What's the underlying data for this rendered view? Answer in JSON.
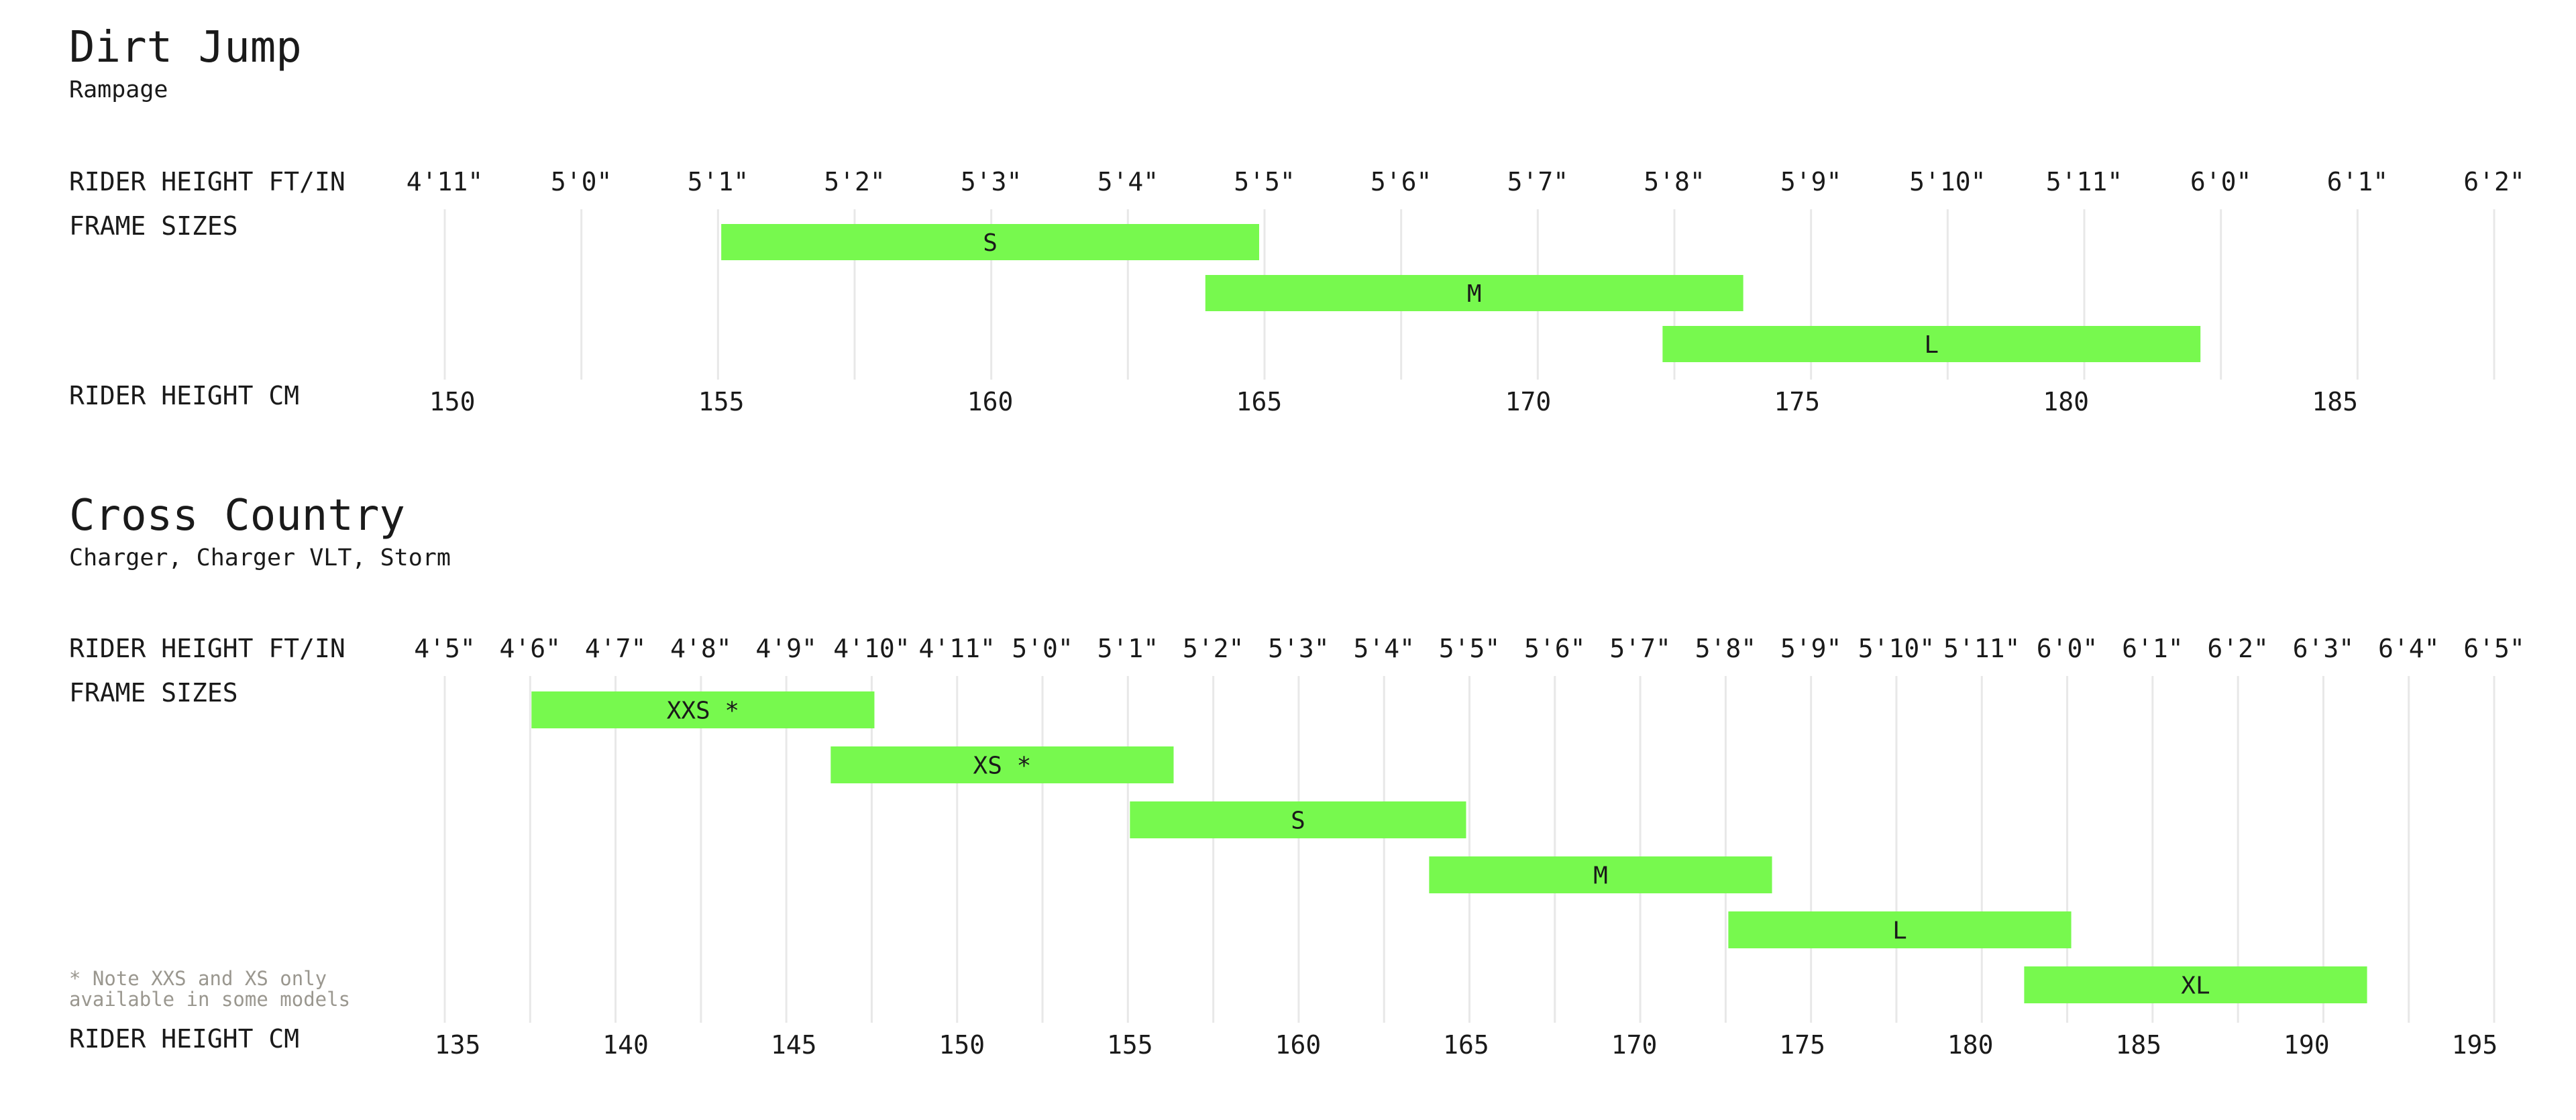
{
  "colors": {
    "bar": "#77f94e",
    "text": "#1a1a1a",
    "gridline": "#e8e8e8",
    "note": "#9a978f"
  },
  "chart_data": [
    {
      "type": "bar",
      "orientation": "horizontal-range",
      "title": "Dirt Jump",
      "subtitle": "Rampage",
      "ft_label": "RIDER HEIGHT FT/IN",
      "frame_label": "FRAME SIZES",
      "cm_label": "RIDER HEIGHT CM",
      "ft_ticks": [
        "4'11\"",
        "5'0\"",
        "5'1\"",
        "5'2\"",
        "5'3\"",
        "5'4\"",
        "5'5\"",
        "5'6\"",
        "5'7\"",
        "5'8\"",
        "5'9\"",
        "5'10\"",
        "5'11\"",
        "6'0\"",
        "6'1\"",
        "6'2\""
      ],
      "ft_ticks_inches": [
        59,
        60,
        61,
        62,
        63,
        64,
        65,
        66,
        67,
        68,
        69,
        70,
        71,
        72,
        73,
        74
      ],
      "cm_ticks": [
        150,
        155,
        160,
        165,
        170,
        175,
        180,
        185
      ],
      "xlim_cm": [
        149.86,
        187.96
      ],
      "note": "",
      "series": [
        {
          "name": "S",
          "range_cm": [
            155,
            165
          ]
        },
        {
          "name": "M",
          "range_cm": [
            164,
            174
          ]
        },
        {
          "name": "L",
          "range_cm": [
            172.5,
            182.5
          ]
        }
      ]
    },
    {
      "type": "bar",
      "orientation": "horizontal-range",
      "title": "Cross Country",
      "subtitle": "Charger, Charger VLT, Storm",
      "ft_label": "RIDER HEIGHT FT/IN",
      "frame_label": "FRAME SIZES",
      "cm_label": "RIDER HEIGHT CM",
      "ft_ticks": [
        "4'5\"",
        "4'6\"",
        "4'7\"",
        "4'8\"",
        "4'9\"",
        "4'10\"",
        "4'11\"",
        "5'0\"",
        "5'1\"",
        "5'2\"",
        "5'3\"",
        "5'4\"",
        "5'5\"",
        "5'6\"",
        "5'7\"",
        "5'8\"",
        "5'9\"",
        "5'10\"",
        "5'11\"",
        "6'0\"",
        "6'1\"",
        "6'2\"",
        "6'3\"",
        "6'4\"",
        "6'5\""
      ],
      "ft_ticks_inches": [
        53,
        54,
        55,
        56,
        57,
        58,
        59,
        60,
        61,
        62,
        63,
        64,
        65,
        66,
        67,
        68,
        69,
        70,
        71,
        72,
        73,
        74,
        75,
        76,
        77
      ],
      "cm_ticks": [
        135,
        140,
        145,
        150,
        155,
        160,
        165,
        170,
        175,
        180,
        185,
        190,
        195
      ],
      "xlim_cm": [
        134.62,
        195.58
      ],
      "note": "* Note XXS and XS only\navailable in some models",
      "series": [
        {
          "name": "XXS *",
          "range_cm": [
            137.2,
            147.4
          ]
        },
        {
          "name": "XS *",
          "range_cm": [
            146.1,
            156.3
          ]
        },
        {
          "name": "S",
          "range_cm": [
            155,
            165
          ]
        },
        {
          "name": "M",
          "range_cm": [
            163.9,
            174.1
          ]
        },
        {
          "name": "L",
          "range_cm": [
            172.8,
            183
          ]
        },
        {
          "name": "XL",
          "range_cm": [
            181.6,
            191.8
          ]
        }
      ]
    }
  ]
}
